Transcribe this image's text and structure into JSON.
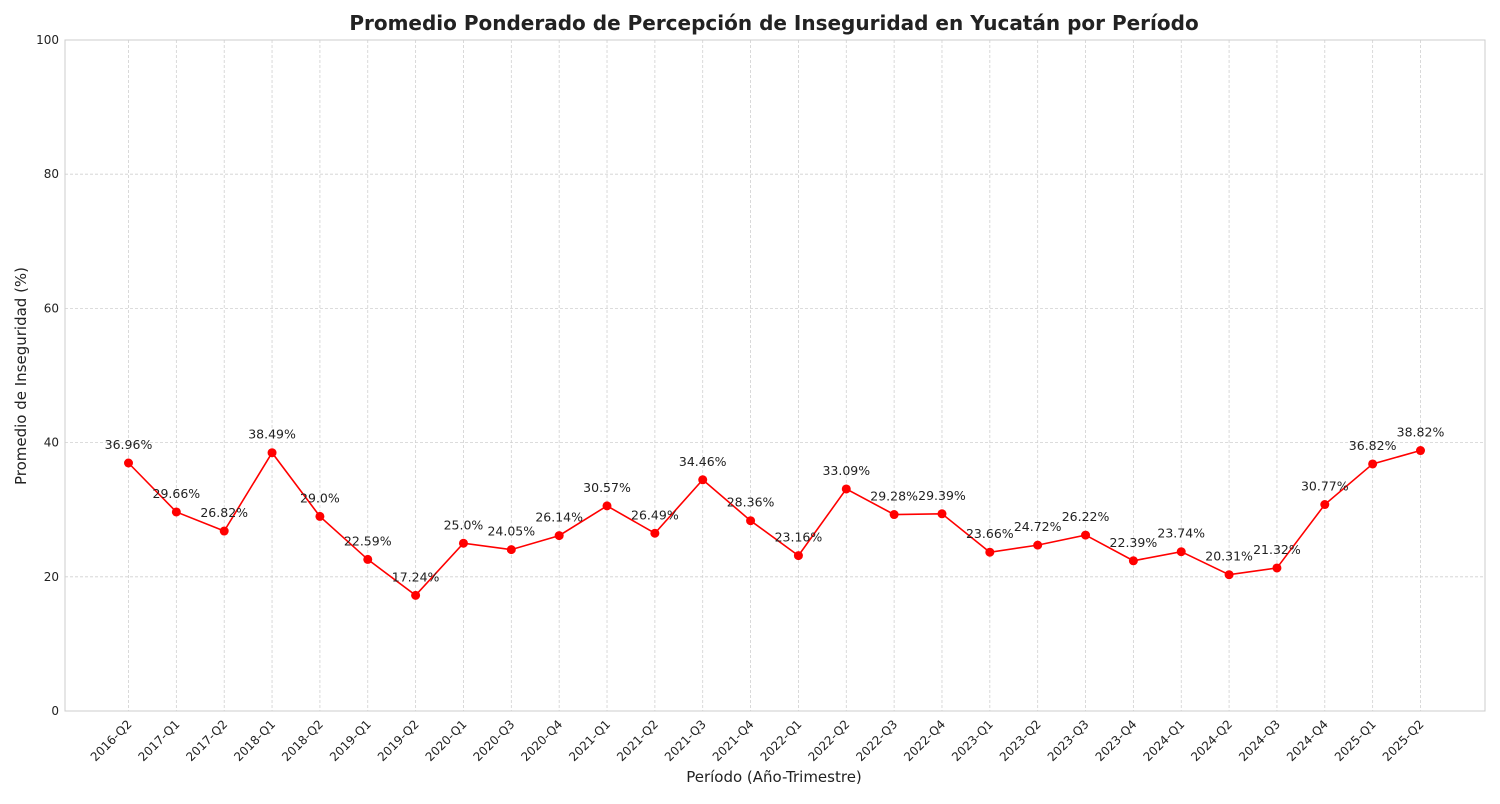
{
  "chart_data": {
    "type": "line",
    "title": "Promedio Ponderado de Percepción de Inseguridad en Yucatán por Período",
    "xlabel": "Período (Año-Trimestre)",
    "ylabel": "Promedio de Inseguridad (%)",
    "ylim": [
      0,
      100
    ],
    "yticks": [
      0,
      20,
      40,
      60,
      80,
      100
    ],
    "grid": true,
    "categories": [
      "2016-Q2",
      "2017-Q1",
      "2017-Q2",
      "2018-Q1",
      "2018-Q2",
      "2019-Q1",
      "2019-Q2",
      "2020-Q1",
      "2020-Q3",
      "2020-Q4",
      "2021-Q1",
      "2021-Q2",
      "2021-Q3",
      "2021-Q4",
      "2022-Q1",
      "2022-Q2",
      "2022-Q3",
      "2022-Q4",
      "2023-Q1",
      "2023-Q2",
      "2023-Q3",
      "2023-Q4",
      "2024-Q1",
      "2024-Q2",
      "2024-Q3",
      "2024-Q4",
      "2025-Q1",
      "2025-Q2"
    ],
    "series": [
      {
        "color": "#ff0000",
        "values": [
          36.96,
          29.66,
          26.82,
          38.49,
          29.0,
          22.59,
          17.24,
          25.0,
          24.05,
          26.14,
          30.57,
          26.49,
          34.46,
          28.36,
          23.16,
          33.09,
          29.28,
          29.39,
          23.66,
          24.72,
          26.22,
          22.39,
          23.74,
          20.31,
          21.32,
          30.77,
          36.82,
          38.82
        ],
        "labels": [
          "36.96%",
          "29.66%",
          "26.82%",
          "38.49%",
          "29.0%",
          "22.59%",
          "17.24%",
          "25.0%",
          "24.05%",
          "26.14%",
          "30.57%",
          "26.49%",
          "34.46%",
          "28.36%",
          "23.16%",
          "33.09%",
          "29.28%",
          "29.39%",
          "23.66%",
          "24.72%",
          "26.22%",
          "22.39%",
          "23.74%",
          "20.31%",
          "21.32%",
          "30.77%",
          "36.82%",
          "38.82%"
        ]
      }
    ]
  }
}
